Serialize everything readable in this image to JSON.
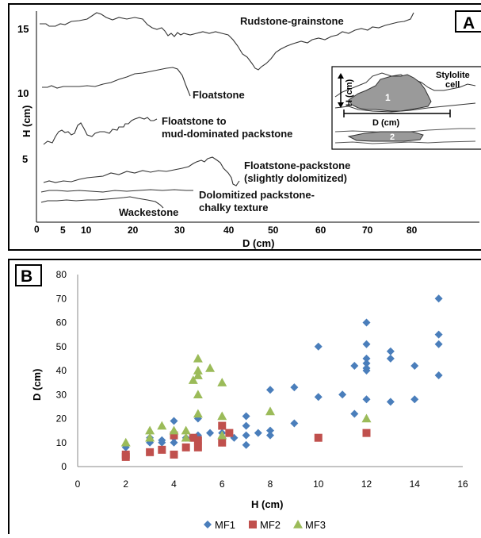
{
  "panel_a": {
    "label": "A",
    "ylabel": "H (cm)",
    "xlabel": "D (cm)",
    "y_ticks": [
      "15",
      "10",
      "5"
    ],
    "x_ticks": [
      "0",
      "5",
      "10",
      "20",
      "30",
      "40",
      "50",
      "60",
      "70",
      "80"
    ],
    "profile_labels": {
      "rudstone": "Rudstone-grainstone",
      "floatstone": "Floatstone",
      "floatstone_mud_1": "Floatstone to",
      "floatstone_mud_2": "mud-dominated packstone",
      "floatstone_pack_1": "Floatstone-packstone",
      "floatstone_pack_2": "(slightly dolomitized)",
      "dolomitized_1": "Dolomitized packstone-",
      "dolomitized_2": "chalky texture",
      "wackestone": "Wackestone"
    },
    "inset": {
      "title_1": "Stylolite",
      "title_2": "cell",
      "h_label": "H (cm)",
      "d_label": "D (cm)",
      "cell_1": "1",
      "cell_2": "2"
    }
  },
  "chart_data": {
    "type": "scatter",
    "panel_label": "B",
    "xlabel": "H (cm)",
    "ylabel": "D (cm)",
    "xlim": [
      0,
      16
    ],
    "ylim": [
      0,
      80
    ],
    "x_ticks": [
      0,
      2,
      4,
      6,
      8,
      10,
      12,
      14,
      16
    ],
    "y_ticks": [
      0,
      10,
      20,
      30,
      40,
      50,
      60,
      70,
      80
    ],
    "grid": false,
    "legend_position": "bottom",
    "series": [
      {
        "name": "MF1",
        "marker": "diamond",
        "color": "#4a7ebb",
        "points": [
          [
            2,
            8
          ],
          [
            3,
            10
          ],
          [
            3,
            12
          ],
          [
            3.5,
            10
          ],
          [
            3.5,
            11
          ],
          [
            4,
            10
          ],
          [
            4,
            12
          ],
          [
            4,
            14
          ],
          [
            4,
            19
          ],
          [
            4.5,
            12
          ],
          [
            5,
            10
          ],
          [
            5,
            13
          ],
          [
            5,
            20
          ],
          [
            5.5,
            14
          ],
          [
            6,
            10
          ],
          [
            6,
            12
          ],
          [
            6,
            14
          ],
          [
            6.5,
            12
          ],
          [
            7,
            9
          ],
          [
            7,
            13
          ],
          [
            7,
            17
          ],
          [
            7,
            21
          ],
          [
            7.5,
            14
          ],
          [
            8,
            13
          ],
          [
            8,
            15
          ],
          [
            8,
            32
          ],
          [
            9,
            18
          ],
          [
            9,
            33
          ],
          [
            10,
            29
          ],
          [
            10,
            50
          ],
          [
            11,
            30
          ],
          [
            11.5,
            22
          ],
          [
            11.5,
            42
          ],
          [
            12,
            28
          ],
          [
            12,
            40
          ],
          [
            12,
            41
          ],
          [
            12,
            43
          ],
          [
            12,
            45
          ],
          [
            12,
            51
          ],
          [
            12,
            60
          ],
          [
            13,
            27
          ],
          [
            13,
            45
          ],
          [
            13,
            48
          ],
          [
            14,
            28
          ],
          [
            14,
            42
          ],
          [
            15,
            38
          ],
          [
            15,
            51
          ],
          [
            15,
            55
          ],
          [
            15,
            70
          ]
        ]
      },
      {
        "name": "MF2",
        "marker": "square",
        "color": "#c0504d",
        "points": [
          [
            2,
            4
          ],
          [
            2,
            5
          ],
          [
            3,
            6
          ],
          [
            3.5,
            7
          ],
          [
            4,
            5
          ],
          [
            4,
            13
          ],
          [
            4.5,
            8
          ],
          [
            4.8,
            12
          ],
          [
            5,
            8
          ],
          [
            5,
            11
          ],
          [
            6,
            10
          ],
          [
            6,
            17
          ],
          [
            6.3,
            14
          ],
          [
            10,
            12
          ],
          [
            12,
            14
          ]
        ]
      },
      {
        "name": "MF3",
        "marker": "triangle",
        "color": "#9bbb59",
        "points": [
          [
            2,
            10
          ],
          [
            3,
            15
          ],
          [
            3,
            12
          ],
          [
            3.5,
            17
          ],
          [
            4,
            15
          ],
          [
            4.5,
            15
          ],
          [
            4.5,
            12
          ],
          [
            4.8,
            36
          ],
          [
            5,
            45
          ],
          [
            5,
            40
          ],
          [
            5,
            30
          ],
          [
            5,
            22
          ],
          [
            5,
            38
          ],
          [
            5.5,
            41
          ],
          [
            6,
            35
          ],
          [
            6,
            21
          ],
          [
            6,
            13
          ],
          [
            8,
            23
          ],
          [
            12,
            20
          ]
        ]
      }
    ]
  }
}
